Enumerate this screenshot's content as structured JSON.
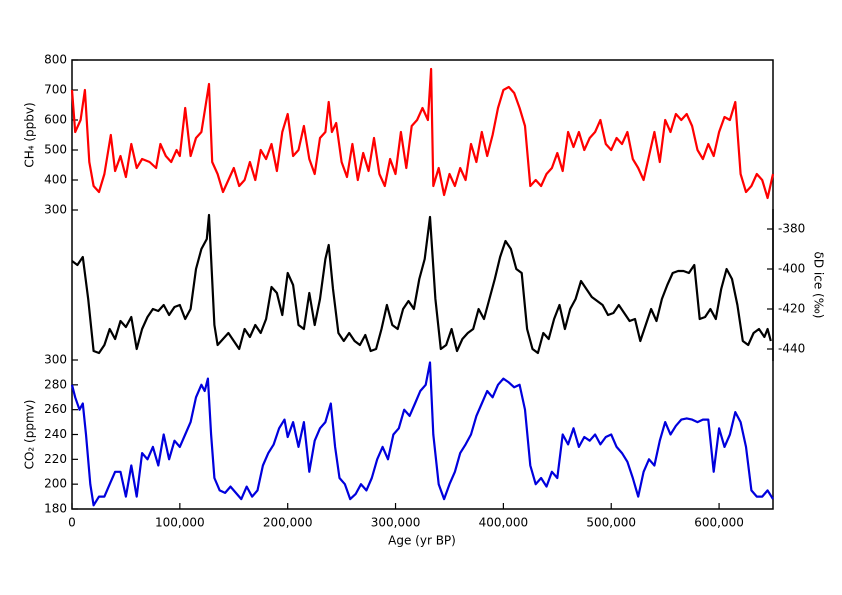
{
  "chart_data": {
    "type": "line",
    "xlabel": "Age (yr BP)",
    "xlim": [
      0,
      650000
    ],
    "xticks": [
      0,
      {
        "value": 100000,
        "label": "100,000"
      },
      {
        "value": 200000,
        "label": "200,000"
      },
      {
        "value": 300000,
        "label": "300,000"
      },
      {
        "value": 400000,
        "label": "400,000"
      },
      {
        "value": 500000,
        "label": "500,000"
      },
      {
        "value": 600000,
        "label": "600,000"
      }
    ],
    "panels": [
      {
        "ylabel": "CH₄ (ppbv)",
        "ylim": [
          300,
          800
        ],
        "yticks": [
          300,
          400,
          500,
          600,
          700,
          800
        ],
        "color": "#ff0000",
        "x": [
          0,
          3000,
          8000,
          12000,
          16000,
          20000,
          25000,
          30000,
          36000,
          40000,
          45000,
          50000,
          55000,
          60000,
          65000,
          72000,
          78000,
          82000,
          87000,
          92000,
          97000,
          100000,
          105000,
          110000,
          115000,
          120000,
          124000,
          127000,
          130000,
          135000,
          140000,
          145000,
          150000,
          155000,
          160000,
          165000,
          170000,
          175000,
          180000,
          185000,
          190000,
          195000,
          200000,
          205000,
          210000,
          215000,
          220000,
          225000,
          230000,
          235000,
          238000,
          241000,
          245000,
          250000,
          255000,
          260000,
          265000,
          270000,
          275000,
          280000,
          285000,
          290000,
          295000,
          300000,
          305000,
          310000,
          315000,
          320000,
          325000,
          330000,
          333000,
          335000,
          340000,
          345000,
          350000,
          355000,
          360000,
          365000,
          370000,
          375000,
          380000,
          385000,
          390000,
          395000,
          400000,
          405000,
          410000,
          415000,
          420000,
          425000,
          430000,
          435000,
          440000,
          445000,
          450000,
          455000,
          460000,
          465000,
          470000,
          475000,
          480000,
          485000,
          490000,
          495000,
          500000,
          505000,
          510000,
          515000,
          520000,
          525000,
          530000,
          535000,
          540000,
          545000,
          550000,
          555000,
          560000,
          565000,
          570000,
          575000,
          580000,
          585000,
          590000,
          595000,
          600000,
          605000,
          610000,
          615000,
          620000,
          625000,
          630000,
          635000,
          640000,
          645000,
          650000
        ],
        "values": [
          700,
          560,
          600,
          700,
          460,
          380,
          360,
          420,
          550,
          430,
          480,
          410,
          520,
          440,
          470,
          460,
          440,
          520,
          480,
          460,
          500,
          480,
          640,
          480,
          540,
          560,
          650,
          720,
          460,
          420,
          360,
          400,
          440,
          380,
          400,
          460,
          400,
          500,
          470,
          520,
          430,
          560,
          620,
          480,
          500,
          580,
          470,
          420,
          540,
          560,
          660,
          560,
          590,
          460,
          410,
          520,
          400,
          490,
          430,
          540,
          420,
          380,
          470,
          420,
          560,
          440,
          580,
          600,
          640,
          600,
          770,
          380,
          440,
          350,
          420,
          380,
          440,
          400,
          520,
          460,
          560,
          480,
          550,
          640,
          700,
          710,
          690,
          640,
          580,
          380,
          400,
          380,
          420,
          440,
          490,
          430,
          560,
          510,
          560,
          500,
          540,
          560,
          600,
          520,
          500,
          540,
          520,
          560,
          470,
          440,
          400,
          480,
          560,
          460,
          600,
          560,
          620,
          600,
          620,
          580,
          500,
          470,
          520,
          480,
          560,
          610,
          600,
          660,
          420,
          360,
          380,
          420,
          400,
          340,
          420
        ]
      },
      {
        "ylabel": "δD ice (‰)",
        "axis": "y2",
        "ylim": [
          -446,
          -370
        ],
        "yticks": [
          -440,
          -420,
          -400,
          -380
        ],
        "color": "#000000",
        "x": [
          0,
          5000,
          10000,
          15000,
          20000,
          25000,
          30000,
          35000,
          40000,
          45000,
          50000,
          55000,
          60000,
          65000,
          70000,
          75000,
          80000,
          85000,
          90000,
          95000,
          100000,
          105000,
          110000,
          115000,
          120000,
          125000,
          127000,
          132000,
          135000,
          140000,
          145000,
          150000,
          155000,
          160000,
          165000,
          170000,
          175000,
          180000,
          185000,
          190000,
          195000,
          200000,
          205000,
          210000,
          215000,
          220000,
          225000,
          230000,
          235000,
          238000,
          242000,
          247000,
          252000,
          257000,
          262000,
          267000,
          272000,
          277000,
          282000,
          287000,
          292000,
          297000,
          302000,
          307000,
          312000,
          317000,
          322000,
          327000,
          332000,
          337000,
          342000,
          347000,
          352000,
          357000,
          362000,
          367000,
          372000,
          377000,
          382000,
          387000,
          392000,
          397000,
          402000,
          407000,
          412000,
          417000,
          422000,
          427000,
          432000,
          437000,
          442000,
          447000,
          452000,
          457000,
          462000,
          467000,
          472000,
          477000,
          482000,
          487000,
          492000,
          497000,
          502000,
          507000,
          512000,
          517000,
          522000,
          527000,
          532000,
          537000,
          542000,
          547000,
          552000,
          557000,
          562000,
          567000,
          572000,
          577000,
          582000,
          587000,
          592000,
          597000,
          602000,
          607000,
          612000,
          617000,
          622000,
          627000,
          632000,
          637000,
          642000,
          645000,
          648000
        ],
        "values": [
          -396,
          -398,
          -394,
          -415,
          -441,
          -442,
          -438,
          -430,
          -435,
          -426,
          -429,
          -424,
          -440,
          -430,
          -424,
          -420,
          -421,
          -418,
          -423,
          -419,
          -418,
          -425,
          -420,
          -400,
          -390,
          -385,
          -373,
          -428,
          -438,
          -435,
          -432,
          -436,
          -440,
          -430,
          -434,
          -428,
          -432,
          -425,
          -409,
          -412,
          -423,
          -402,
          -408,
          -428,
          -430,
          -412,
          -428,
          -415,
          -395,
          -388,
          -410,
          -432,
          -436,
          -432,
          -436,
          -438,
          -433,
          -441,
          -440,
          -430,
          -418,
          -428,
          -430,
          -420,
          -416,
          -420,
          -405,
          -395,
          -374,
          -415,
          -440,
          -438,
          -430,
          -441,
          -435,
          -432,
          -430,
          -420,
          -425,
          -415,
          -405,
          -394,
          -386,
          -390,
          -400,
          -402,
          -430,
          -440,
          -442,
          -432,
          -435,
          -425,
          -418,
          -430,
          -420,
          -415,
          -406,
          -410,
          -414,
          -416,
          -418,
          -423,
          -422,
          -418,
          -422,
          -426,
          -425,
          -436,
          -428,
          -420,
          -426,
          -415,
          -408,
          -402,
          -401,
          -401,
          -402,
          -398,
          -425,
          -424,
          -420,
          -425,
          -410,
          -400,
          -405,
          -418,
          -436,
          -438,
          -432,
          -430,
          -434,
          -430,
          -436
        ]
      },
      {
        "ylabel": "CO₂ (ppmv)",
        "ylim": [
          180,
          300
        ],
        "yticks": [
          180,
          200,
          220,
          240,
          260,
          280,
          300
        ],
        "color": "#0000dd",
        "x": [
          0,
          3000,
          7000,
          10000,
          13000,
          17000,
          20000,
          25000,
          30000,
          35000,
          40000,
          45000,
          50000,
          55000,
          60000,
          65000,
          70000,
          75000,
          80000,
          85000,
          90000,
          95000,
          100000,
          105000,
          110000,
          115000,
          120000,
          123000,
          126000,
          129000,
          132000,
          137000,
          142000,
          147000,
          152000,
          157000,
          162000,
          167000,
          172000,
          177000,
          182000,
          187000,
          192000,
          197000,
          200000,
          205000,
          210000,
          215000,
          220000,
          225000,
          230000,
          235000,
          240000,
          244000,
          248000,
          253000,
          258000,
          263000,
          268000,
          273000,
          278000,
          283000,
          288000,
          293000,
          298000,
          303000,
          308000,
          313000,
          318000,
          323000,
          328000,
          332000,
          335000,
          340000,
          345000,
          350000,
          355000,
          360000,
          365000,
          370000,
          375000,
          380000,
          385000,
          390000,
          395000,
          400000,
          405000,
          410000,
          415000,
          420000,
          425000,
          430000,
          435000,
          440000,
          445000,
          450000,
          455000,
          460000,
          465000,
          470000,
          475000,
          480000,
          485000,
          490000,
          495000,
          500000,
          505000,
          510000,
          515000,
          520000,
          525000,
          530000,
          535000,
          540000,
          545000,
          550000,
          555000,
          560000,
          565000,
          570000,
          575000,
          580000,
          585000,
          590000,
          595000,
          600000,
          605000,
          610000,
          615000,
          620000,
          625000,
          630000,
          635000,
          640000,
          645000,
          650000
        ],
        "values": [
          280,
          270,
          260,
          265,
          240,
          200,
          183,
          190,
          190,
          200,
          210,
          210,
          190,
          215,
          190,
          225,
          220,
          230,
          215,
          240,
          220,
          235,
          230,
          240,
          250,
          270,
          280,
          275,
          285,
          240,
          205,
          195,
          193,
          198,
          193,
          188,
          198,
          190,
          195,
          215,
          225,
          232,
          245,
          252,
          238,
          250,
          230,
          250,
          210,
          235,
          245,
          250,
          265,
          230,
          205,
          200,
          188,
          192,
          200,
          195,
          205,
          220,
          230,
          220,
          240,
          245,
          260,
          255,
          265,
          275,
          280,
          298,
          240,
          200,
          188,
          200,
          210,
          225,
          232,
          240,
          255,
          265,
          275,
          270,
          280,
          285,
          282,
          278,
          280,
          260,
          215,
          200,
          205,
          198,
          210,
          205,
          240,
          232,
          245,
          230,
          238,
          235,
          240,
          232,
          238,
          240,
          230,
          225,
          218,
          205,
          190,
          210,
          220,
          215,
          235,
          250,
          240,
          247,
          252,
          253,
          252,
          250,
          252,
          252,
          210,
          245,
          230,
          240,
          258,
          250,
          230,
          195,
          190,
          190,
          195,
          188
        ]
      }
    ]
  }
}
